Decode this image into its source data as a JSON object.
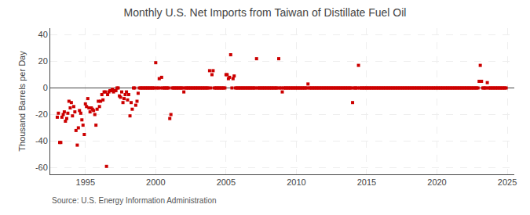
{
  "chart_data": {
    "type": "scatter",
    "title": "Monthly U.S. Net Imports from Taiwan of Distillate Fuel Oil",
    "ylabel": "Thousand Barrels per Day",
    "annotations": [
      "Source: U.S. Energy Information Administration"
    ],
    "color": "#cc0000",
    "marker": "square",
    "grid": true,
    "xlim": [
      1992.5,
      2025.5
    ],
    "ylim": [
      -65,
      45
    ],
    "xticks": [
      1995,
      2000,
      2005,
      2010,
      2015,
      2020,
      2025
    ],
    "yticks": [
      -60,
      -40,
      -20,
      0,
      20,
      40
    ],
    "x": [
      1993.0,
      1993.08,
      1993.17,
      1993.25,
      1993.33,
      1993.42,
      1993.5,
      1993.58,
      1993.67,
      1993.75,
      1993.83,
      1993.92,
      1994.0,
      1994.08,
      1994.17,
      1994.25,
      1994.33,
      1994.42,
      1994.5,
      1994.58,
      1994.67,
      1994.75,
      1994.83,
      1994.92,
      1995.0,
      1995.08,
      1995.17,
      1995.25,
      1995.33,
      1995.42,
      1995.5,
      1995.58,
      1995.67,
      1995.75,
      1995.83,
      1995.92,
      1996.0,
      1996.08,
      1996.17,
      1996.25,
      1996.33,
      1996.42,
      1996.5,
      1996.58,
      1996.67,
      1996.75,
      1996.83,
      1996.92,
      1997.0,
      1997.08,
      1997.17,
      1997.25,
      1997.33,
      1997.42,
      1997.5,
      1997.58,
      1997.67,
      1997.75,
      1997.83,
      1997.92,
      1998.0,
      1998.08,
      1998.17,
      1998.25,
      1998.33,
      1998.42,
      1998.5,
      1998.58,
      1998.67,
      1998.75,
      1998.83,
      1998.92,
      1999.0,
      1999.08,
      1999.17,
      1999.25,
      1999.33,
      1999.42,
      1999.5,
      1999.58,
      1999.67,
      1999.75,
      1999.83,
      1999.92,
      2000.0,
      2000.08,
      2000.17,
      2000.25,
      2000.33,
      2000.42,
      2000.5,
      2000.58,
      2000.67,
      2000.75,
      2000.83,
      2000.92,
      2001.0,
      2001.08,
      2001.17,
      2001.25,
      2001.33,
      2001.42,
      2001.5,
      2001.58,
      2001.67,
      2001.75,
      2001.83,
      2001.92,
      2002.0,
      2002.08,
      2002.17,
      2002.25,
      2002.33,
      2002.42,
      2002.5,
      2002.58,
      2002.67,
      2002.75,
      2002.83,
      2002.92,
      2003.0,
      2003.08,
      2003.17,
      2003.25,
      2003.33,
      2003.42,
      2003.5,
      2003.58,
      2003.67,
      2003.75,
      2003.83,
      2003.92,
      2004.0,
      2004.08,
      2004.17,
      2004.25,
      2004.33,
      2004.42,
      2004.5,
      2004.58,
      2004.67,
      2004.75,
      2004.83,
      2004.92,
      2005.0,
      2005.08,
      2005.17,
      2005.25,
      2005.33,
      2005.42,
      2005.5,
      2005.58,
      2005.67,
      2005.75,
      2005.83,
      2005.92,
      2006.0,
      2006.08,
      2006.17,
      2006.25,
      2006.33,
      2006.42,
      2006.5,
      2006.58,
      2006.67,
      2006.75,
      2006.83,
      2006.92,
      2007.0,
      2007.08,
      2007.17,
      2007.25,
      2007.33,
      2007.42,
      2007.5,
      2007.58,
      2007.67,
      2007.75,
      2007.83,
      2007.92,
      2008.0,
      2008.08,
      2008.17,
      2008.25,
      2008.33,
      2008.42,
      2008.5,
      2008.58,
      2008.67,
      2008.75,
      2008.83,
      2008.92,
      2009.0,
      2009.08,
      2009.17,
      2009.25,
      2009.33,
      2009.42,
      2009.5,
      2009.58,
      2009.67,
      2009.75,
      2009.83,
      2009.92,
      2010.0,
      2010.08,
      2010.17,
      2010.25,
      2010.33,
      2010.42,
      2010.5,
      2010.58,
      2010.67,
      2010.75,
      2010.83,
      2010.92,
      2011.0,
      2011.08,
      2011.17,
      2011.25,
      2011.33,
      2011.42,
      2011.5,
      2011.58,
      2011.67,
      2011.75,
      2011.83,
      2011.92,
      2012.0,
      2012.08,
      2012.17,
      2012.25,
      2012.33,
      2012.42,
      2012.5,
      2012.58,
      2012.67,
      2012.75,
      2012.83,
      2012.92,
      2013.0,
      2013.08,
      2013.17,
      2013.25,
      2013.33,
      2013.42,
      2013.5,
      2013.58,
      2013.67,
      2013.75,
      2013.83,
      2013.92,
      2014.0,
      2014.08,
      2014.17,
      2014.25,
      2014.33,
      2014.42,
      2014.5,
      2014.58,
      2014.67,
      2014.75,
      2014.83,
      2014.92,
      2015.0,
      2015.08,
      2015.17,
      2015.25,
      2015.33,
      2015.42,
      2015.5,
      2015.58,
      2015.67,
      2015.75,
      2015.83,
      2015.92,
      2016.0,
      2016.08,
      2016.17,
      2016.25,
      2016.33,
      2016.42,
      2016.5,
      2016.58,
      2016.67,
      2016.75,
      2016.83,
      2016.92,
      2017.0,
      2017.08,
      2017.17,
      2017.25,
      2017.33,
      2017.42,
      2017.5,
      2017.58,
      2017.67,
      2017.75,
      2017.83,
      2017.92,
      2018.0,
      2018.08,
      2018.17,
      2018.25,
      2018.33,
      2018.42,
      2018.5,
      2018.58,
      2018.67,
      2018.75,
      2018.83,
      2018.92,
      2019.0,
      2019.08,
      2019.17,
      2019.25,
      2019.33,
      2019.42,
      2019.5,
      2019.58,
      2019.67,
      2019.75,
      2019.83,
      2019.92,
      2020.0,
      2020.08,
      2020.17,
      2020.25,
      2020.33,
      2020.42,
      2020.5,
      2020.58,
      2020.67,
      2020.75,
      2020.83,
      2020.92,
      2021.0,
      2021.08,
      2021.17,
      2021.25,
      2021.33,
      2021.42,
      2021.5,
      2021.58,
      2021.67,
      2021.75,
      2021.83,
      2021.92,
      2022.0,
      2022.08,
      2022.17,
      2022.25,
      2022.33,
      2022.42,
      2022.5,
      2022.58,
      2022.67,
      2022.75,
      2022.83,
      2022.92,
      2023.0,
      2023.08,
      2023.17,
      2023.25,
      2023.33,
      2023.42,
      2023.5,
      2023.58,
      2023.67,
      2023.75,
      2023.83,
      2023.92,
      2024.0,
      2024.08,
      2024.17,
      2024.25,
      2024.33,
      2024.42,
      2024.5,
      2024.58,
      2024.67,
      2024.75,
      2024.83,
      2024.92
    ],
    "values": [
      -22,
      -19,
      -41,
      -41,
      -22,
      -20,
      -18,
      -25,
      -23,
      -19,
      -10,
      -15,
      -11,
      -21,
      -14,
      -18,
      -32,
      -43,
      -30,
      -17,
      -19,
      -24,
      -28,
      -35,
      -12,
      -14,
      -8,
      -15,
      -18,
      -15,
      -16,
      -17,
      -20,
      -28,
      -16,
      -10,
      -14,
      -10,
      -5,
      -9,
      -3,
      -3,
      -59,
      -5,
      -3,
      -2,
      -2,
      -1,
      -3,
      -2,
      -2,
      0,
      0,
      -6,
      -7,
      -3,
      -11,
      -8,
      -5,
      -3,
      -9,
      -5,
      -21,
      -11,
      -16,
      0,
      0,
      -13,
      -10,
      -4,
      0,
      0,
      0,
      0,
      0,
      0,
      0,
      0,
      0,
      0,
      0,
      0,
      0,
      0,
      19,
      0,
      0,
      7,
      0,
      8,
      0,
      0,
      0,
      0,
      0,
      0,
      -23,
      -20,
      0,
      0,
      0,
      0,
      0,
      0,
      0,
      0,
      0,
      0,
      -3,
      0,
      0,
      0,
      0,
      0,
      0,
      0,
      0,
      0,
      0,
      0,
      0,
      0,
      0,
      0,
      0,
      0,
      0,
      0,
      0,
      0,
      13,
      0,
      10,
      13,
      0,
      0,
      0,
      0,
      0,
      0,
      0,
      0,
      0,
      0,
      10,
      10,
      7,
      8,
      25,
      0,
      7,
      9,
      0,
      0,
      0,
      0,
      0,
      0,
      0,
      0,
      0,
      0,
      0,
      0,
      0,
      0,
      0,
      0,
      0,
      0,
      22,
      0,
      0,
      0,
      0,
      0,
      0,
      0,
      0,
      0,
      0,
      0,
      0,
      0,
      0,
      0,
      0,
      0,
      0,
      22,
      0,
      0,
      -3,
      0,
      0,
      0,
      0,
      0,
      0,
      0,
      0,
      0,
      0,
      0,
      0,
      0,
      0,
      0,
      0,
      0,
      0,
      0,
      0,
      0,
      3,
      0,
      0,
      0,
      0,
      0,
      0,
      0,
      0,
      0,
      0,
      0,
      0,
      0,
      0,
      0,
      0,
      0,
      0,
      0,
      0,
      0,
      0,
      0,
      0,
      0,
      0,
      0,
      0,
      0,
      0,
      0,
      0,
      0,
      0,
      0,
      0,
      0,
      -11,
      0,
      0,
      0,
      0,
      17,
      0,
      0,
      0,
      0,
      0,
      0,
      0,
      0,
      0,
      0,
      0,
      0,
      0,
      0,
      0,
      0,
      0,
      0,
      0,
      0,
      0,
      0,
      0,
      0,
      0,
      0,
      0,
      0,
      0,
      0,
      0,
      0,
      0,
      0,
      0,
      0,
      0,
      0,
      0,
      0,
      0,
      0,
      0,
      0,
      0,
      0,
      0,
      0,
      0,
      0,
      0,
      0,
      0,
      0,
      0,
      0,
      0,
      0,
      0,
      0,
      0,
      0,
      0,
      0,
      0,
      0,
      0,
      0,
      0,
      0,
      0,
      0,
      0,
      0,
      0,
      0,
      0,
      0,
      0,
      0,
      0,
      0,
      0,
      0,
      0,
      0,
      0,
      0,
      0,
      0,
      0,
      0,
      0,
      0,
      0,
      0,
      0,
      0,
      0,
      0,
      0,
      0,
      5,
      17,
      5,
      0,
      0,
      0,
      0,
      4,
      0,
      0,
      0,
      0,
      0,
      0,
      0,
      0,
      0,
      0,
      0,
      0,
      0,
      0,
      0,
      0
    ]
  }
}
